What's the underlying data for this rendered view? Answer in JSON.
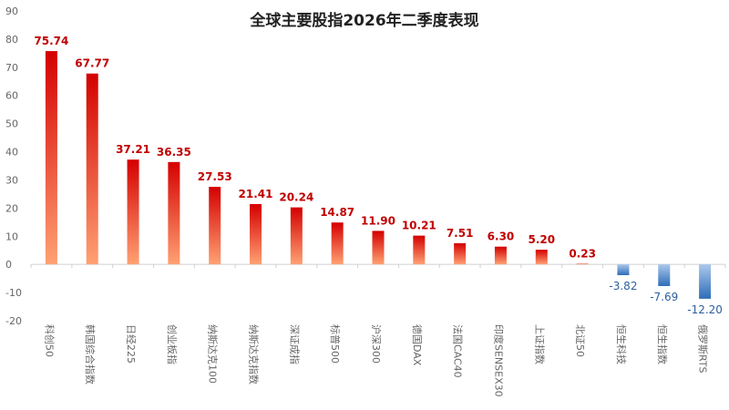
{
  "chart_data": {
    "type": "bar",
    "title": "全球主要股指2026年二季度表现",
    "xlabel": "",
    "ylabel": "",
    "ylim": [
      -20,
      90
    ],
    "yticks": [
      -20,
      -10,
      0,
      10,
      20,
      30,
      40,
      50,
      60,
      70,
      80,
      90
    ],
    "grid": false,
    "legend": "none",
    "categories": [
      "科创50",
      "韩国综合指数",
      "日经225",
      "创业板指",
      "纳斯达克100",
      "纳斯达克指数",
      "深证成指",
      "标普500",
      "沪深300",
      "德国DAX",
      "法国CAC40",
      "印度SENSEX30",
      "上证指数",
      "北证50",
      "恒生科技",
      "恒生指数",
      "俄罗斯RTS"
    ],
    "values": [
      75.74,
      67.77,
      37.21,
      36.35,
      27.53,
      21.41,
      20.24,
      14.87,
      11.9,
      10.21,
      7.51,
      6.3,
      5.2,
      0.23,
      -3.82,
      -7.69,
      -12.2
    ],
    "value_labels": [
      "75.74",
      "67.77",
      "37.21",
      "36.35",
      "27.53",
      "21.41",
      "20.24",
      "14.87",
      "11.90",
      "10.21",
      "7.51",
      "6.30",
      "5.20",
      "0.23",
      "-3.82",
      "-7.69",
      "-12.20"
    ],
    "colors": {
      "positive_top": "#d40000",
      "positive_bottom": "#ffa173",
      "negative_top": "#aac8ec",
      "negative_bottom": "#2e6db8",
      "positive_label": "#c00000",
      "negative_label": "#2e5f9e",
      "axis_text": "#666666",
      "title": "#222222"
    }
  }
}
